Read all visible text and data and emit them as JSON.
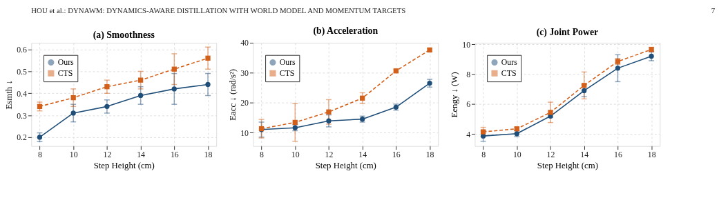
{
  "chart_data": [
    {
      "type": "line",
      "title": "(a)  Smoothness",
      "xlabel": "Step Height (cm)",
      "ylabel": "Esmth ↓",
      "annotations": [
        "HOU et al.: DYNAWM: DYNAMICS-AWARE DISTILLATION WITH WORLD MODEL AND MOMENTUM TARGETS",
        "7"
      ],
      "x": [
        8,
        10,
        12,
        14,
        16,
        18
      ],
      "xlim": [
        7.5,
        18.5
      ],
      "xticks": [
        8,
        10,
        12,
        14,
        16,
        18
      ],
      "ylim": [
        0.16,
        0.63
      ],
      "yticks": [
        0.2,
        0.3,
        0.4,
        0.5,
        0.6
      ],
      "grid": true,
      "legend": "top left",
      "series": [
        {
          "name": "Ours",
          "color": "#1f4e79",
          "marker": "circle",
          "line_style": "solid",
          "values": [
            0.2,
            0.31,
            0.34,
            0.39,
            0.42,
            0.44
          ],
          "errors": [
            0.02,
            0.04,
            0.03,
            0.04,
            0.07,
            0.05
          ]
        },
        {
          "name": "CTS",
          "color": "#d2601a",
          "marker": "square",
          "line_style": "dashed",
          "values": [
            0.34,
            0.38,
            0.43,
            0.46,
            0.51,
            0.56
          ],
          "errors": [
            0.02,
            0.04,
            0.03,
            0.04,
            0.07,
            0.05
          ]
        }
      ]
    },
    {
      "type": "line",
      "title": "(b)  Acceleration",
      "xlabel": "Step Height (cm)",
      "ylabel": "Eacc ↓  (rad/s²)",
      "x": [
        8,
        10,
        12,
        14,
        16,
        18
      ],
      "xlim": [
        7.5,
        18.5
      ],
      "xticks": [
        8,
        10,
        12,
        14,
        16,
        18
      ],
      "ylim": [
        5.5,
        40
      ],
      "yticks": [
        10,
        20,
        30,
        40
      ],
      "grid": true,
      "legend": "top left",
      "series": [
        {
          "name": "Ours",
          "color": "#1f4e79",
          "marker": "circle",
          "line_style": "solid",
          "values": [
            11.0,
            11.6,
            13.9,
            14.5,
            18.5,
            26.5
          ],
          "errors": [
            2.5,
            1.0,
            2.0,
            1.0,
            1.0,
            1.3
          ]
        },
        {
          "name": "CTS",
          "color": "#d2601a",
          "marker": "square",
          "line_style": "dashed",
          "values": [
            11.3,
            13.4,
            16.9,
            21.5,
            30.6,
            37.6
          ],
          "errors": [
            3.1,
            6.3,
            4.1,
            1.8,
            0.4,
            0.5
          ]
        }
      ]
    },
    {
      "type": "line",
      "title": "(c)  Joint Power",
      "xlabel": "Step Height (cm)",
      "ylabel": "Eengy ↓  (W)",
      "x": [
        8,
        10,
        12,
        14,
        16,
        18
      ],
      "xlim": [
        7.5,
        18.5
      ],
      "xticks": [
        8,
        10,
        12,
        14,
        16,
        18
      ],
      "ylim": [
        3.2,
        10.1
      ],
      "yticks": [
        4,
        6,
        8,
        10
      ],
      "grid": true,
      "legend": "top left",
      "series": [
        {
          "name": "Ours",
          "color": "#1f4e79",
          "marker": "circle",
          "line_style": "solid",
          "values": [
            3.87,
            4.03,
            5.2,
            6.9,
            8.4,
            9.2
          ],
          "errors": [
            0.35,
            0.2,
            0.1,
            0.4,
            0.9,
            0.3
          ]
        },
        {
          "name": "CTS",
          "color": "#d2601a",
          "marker": "square",
          "line_style": "dashed",
          "values": [
            4.15,
            4.35,
            5.45,
            7.25,
            8.85,
            9.65
          ],
          "errors": [
            0.3,
            0.1,
            0.68,
            0.9,
            0.2,
            0.15
          ]
        }
      ]
    }
  ]
}
